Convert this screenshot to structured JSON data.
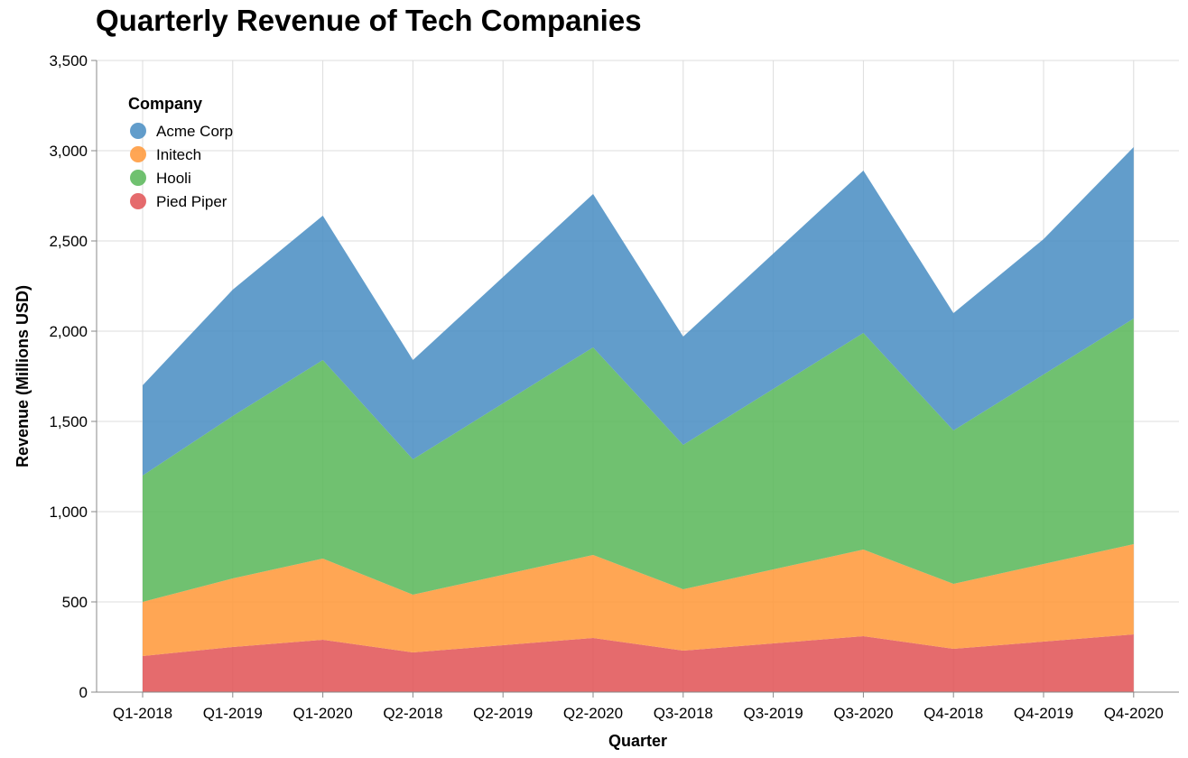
{
  "chart_data": {
    "type": "area",
    "stacked": true,
    "title": "Quarterly Revenue of Tech Companies",
    "xlabel": "Quarter",
    "ylabel": "Revenue (Millions USD)",
    "ylim": [
      0,
      3500
    ],
    "yticks": [
      0,
      500,
      1000,
      1500,
      2000,
      2500,
      3000,
      3500
    ],
    "ytick_labels": [
      "0",
      "500",
      "1,000",
      "1,500",
      "2,000",
      "2,500",
      "3,000",
      "3,500"
    ],
    "grid": true,
    "legend_title": "Company",
    "legend_position": "top-left",
    "categories": [
      "Q1-2018",
      "Q1-2019",
      "Q1-2020",
      "Q2-2018",
      "Q2-2019",
      "Q2-2020",
      "Q3-2018",
      "Q3-2019",
      "Q3-2020",
      "Q4-2018",
      "Q4-2019",
      "Q4-2020"
    ],
    "series": [
      {
        "name": "Acme Corp",
        "color": "#4c8fc4",
        "values": [
          500,
          700,
          800,
          550,
          700,
          850,
          600,
          750,
          900,
          650,
          750,
          950
        ]
      },
      {
        "name": "Initech",
        "color": "#ff9a3c",
        "values": [
          300,
          380,
          450,
          320,
          390,
          460,
          340,
          410,
          480,
          360,
          430,
          500
        ]
      },
      {
        "name": "Hooli",
        "color": "#5cb85c",
        "values": [
          700,
          900,
          1100,
          750,
          950,
          1150,
          800,
          1000,
          1200,
          850,
          1050,
          1250
        ]
      },
      {
        "name": "Pied Piper",
        "color": "#e15759",
        "values": [
          200,
          250,
          290,
          220,
          260,
          300,
          230,
          270,
          310,
          240,
          280,
          320
        ]
      }
    ],
    "stack_order_bottom_to_top": [
      "Pied Piper",
      "Initech",
      "Hooli",
      "Acme Corp"
    ]
  }
}
